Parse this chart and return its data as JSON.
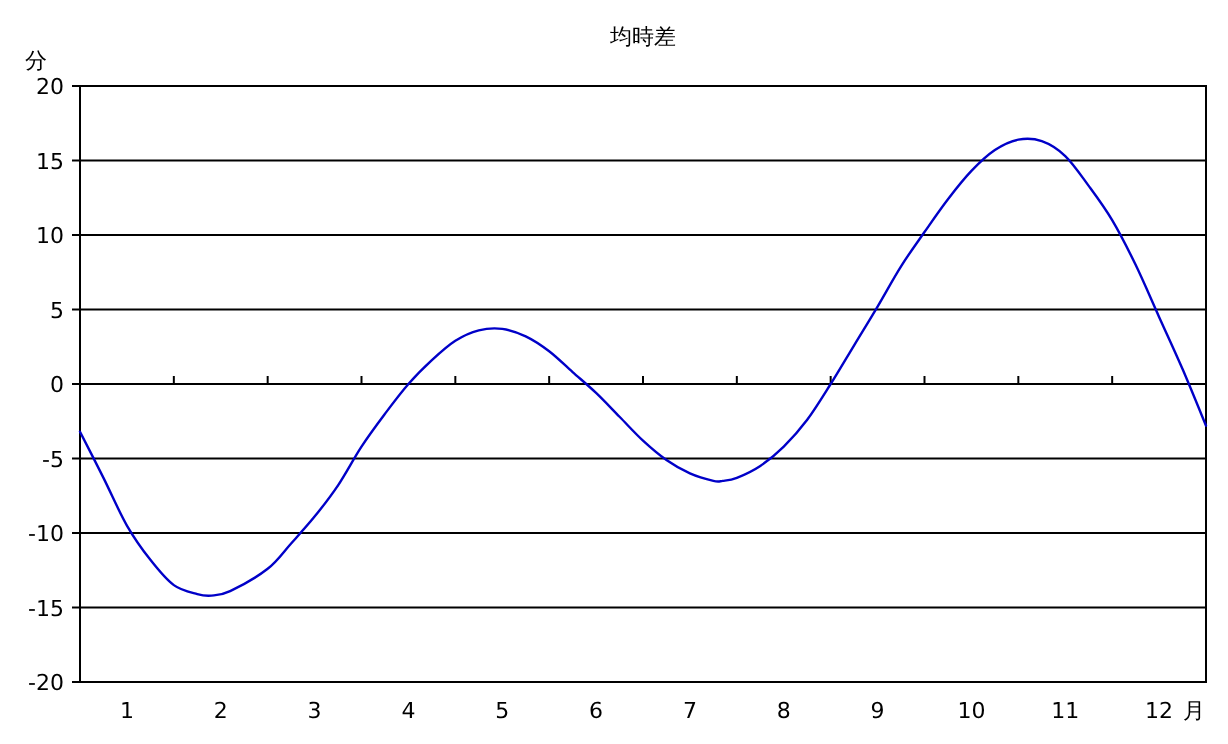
{
  "chart_data": {
    "type": "line",
    "title": "均時差",
    "xlabel": "月",
    "ylabel": "分",
    "color": "#0000c8",
    "grid": "y",
    "marker": "none",
    "x": [
      0,
      0.25,
      0.5,
      0.75,
      1.0,
      1.25,
      1.4,
      1.6,
      2.0,
      2.25,
      2.5,
      2.75,
      3.0,
      3.25,
      3.5,
      3.75,
      4.0,
      4.25,
      4.5,
      4.75,
      5.0,
      5.25,
      5.5,
      5.75,
      6.0,
      6.25,
      6.5,
      6.75,
      6.85,
      7.0,
      7.25,
      7.5,
      7.75,
      8.0,
      8.25,
      8.5,
      8.75,
      9.0,
      9.25,
      9.5,
      9.75,
      10.0,
      10.25,
      10.5,
      10.75,
      11.0,
      11.25,
      11.5,
      11.75,
      12.0
    ],
    "values": [
      -3.2,
      -6.3,
      -9.5,
      -11.8,
      -13.5,
      -14.1,
      -14.2,
      -13.9,
      -12.4,
      -10.7,
      -8.9,
      -6.8,
      -4.2,
      -2.0,
      0.0,
      1.6,
      2.9,
      3.6,
      3.7,
      3.2,
      2.2,
      0.8,
      -0.6,
      -2.2,
      -3.8,
      -5.1,
      -6.0,
      -6.5,
      -6.5,
      -6.3,
      -5.5,
      -4.2,
      -2.4,
      0.0,
      2.6,
      5.2,
      7.9,
      10.2,
      12.4,
      14.3,
      15.7,
      16.4,
      16.3,
      15.3,
      13.3,
      11.0,
      8.0,
      4.5,
      1.0,
      -2.8
    ],
    "xlim": [
      0,
      12
    ],
    "ylim": [
      -20,
      20
    ],
    "yticks": [
      -20,
      -15,
      -10,
      -5,
      0,
      5,
      10,
      15,
      20
    ],
    "xticks": [
      {
        "value": 0.5,
        "label": "1"
      },
      {
        "value": 1,
        "label": null
      },
      {
        "value": 1.5,
        "label": "2"
      },
      {
        "value": 2,
        "label": null
      },
      {
        "value": 2.5,
        "label": "3"
      },
      {
        "value": 3,
        "label": null
      },
      {
        "value": 3.5,
        "label": "4"
      },
      {
        "value": 4,
        "label": null
      },
      {
        "value": 4.5,
        "label": "5"
      },
      {
        "value": 5,
        "label": null
      },
      {
        "value": 5.5,
        "label": "6"
      },
      {
        "value": 6,
        "label": null
      },
      {
        "value": 6.5,
        "label": "7"
      },
      {
        "value": 7,
        "label": null
      },
      {
        "value": 7.5,
        "label": "8"
      },
      {
        "value": 8,
        "label": null
      },
      {
        "value": 8.5,
        "label": "9"
      },
      {
        "value": 9,
        "label": null
      },
      {
        "value": 9.5,
        "label": "10"
      },
      {
        "value": 10,
        "label": null
      },
      {
        "value": 10.5,
        "label": "11"
      },
      {
        "value": 11,
        "label": null
      },
      {
        "value": 11.5,
        "label": "12"
      }
    ]
  }
}
